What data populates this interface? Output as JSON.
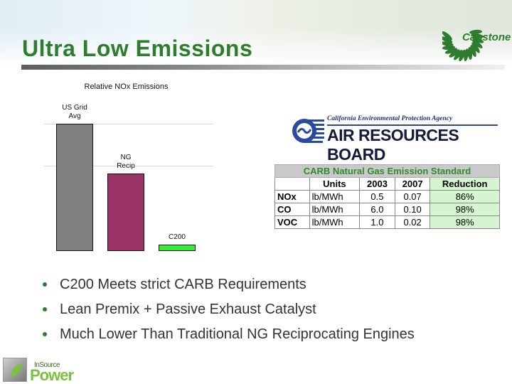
{
  "slide": {
    "title": "Ultra Low Emissions",
    "brand_logo_text": "Capstone",
    "footer_logo": {
      "line1": "InSource",
      "line2": "Power"
    },
    "accent_color": "#2e7d2e"
  },
  "chart_data": {
    "type": "bar",
    "title": "Relative NOx Emissions",
    "categories": [
      "US Grid Avg",
      "NG Recip",
      "C200"
    ],
    "category_labels": [
      [
        "US Grid",
        "Avg"
      ],
      [
        "NG",
        "Recip"
      ],
      [
        "C200"
      ]
    ],
    "values": [
      100,
      61,
      5
    ],
    "colors": [
      "#808080",
      "#993366",
      "#33ee33"
    ],
    "xlabel": "",
    "ylabel": "",
    "ylim": [
      0,
      100
    ],
    "grid": true,
    "legend": "none"
  },
  "agency": {
    "subtitle": "California Environmental Protection Agency",
    "name": "AIR RESOURCES BOARD"
  },
  "table": {
    "title": "CARB Natural Gas Emission Standard",
    "columns": [
      "",
      "Units",
      "2003",
      "2007",
      "Reduction"
    ],
    "rows": [
      [
        "NOx",
        "lb/MWh",
        "0.5",
        "0.07",
        "86%"
      ],
      [
        "CO",
        "lb/MWh",
        "6.0",
        "0.10",
        "98%"
      ],
      [
        "VOC",
        "lb/MWh",
        "1.0",
        "0.02",
        "98%"
      ]
    ]
  },
  "bullets": [
    "C200 Meets strict CARB Requirements",
    "Lean Premix + Passive Exhaust Catalyst",
    "Much Lower Than Traditional NG Reciprocating Engines"
  ]
}
